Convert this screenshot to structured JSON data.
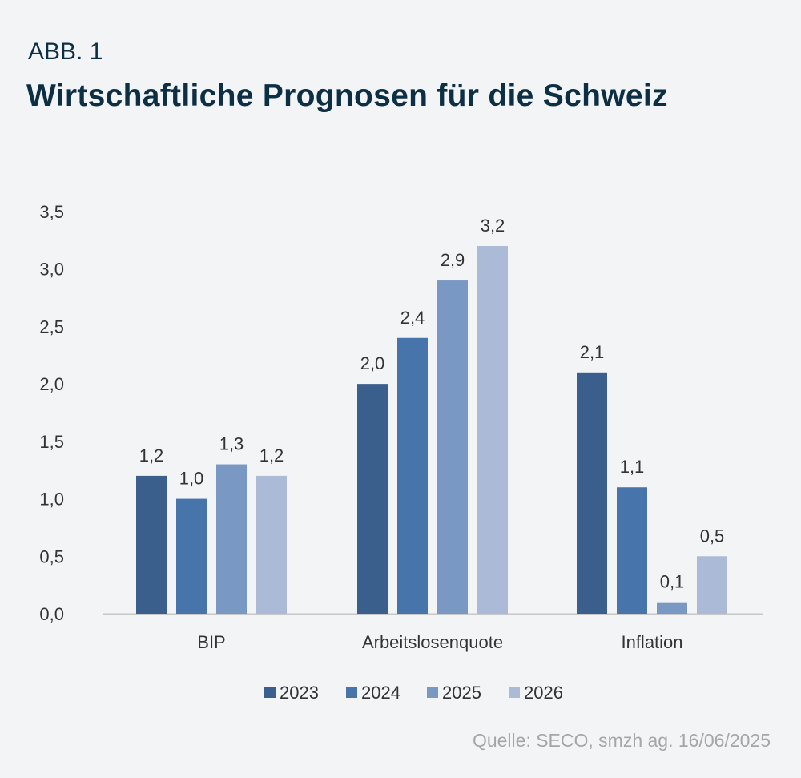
{
  "figure_label": "ABB. 1",
  "title": "Wirtschaftliche Prognosen für die Schweiz",
  "source": "Quelle: SECO, smzh ag. 16/06/2025",
  "chart_data": {
    "type": "bar",
    "title": "Wirtschaftliche Prognosen für die Schweiz",
    "xlabel": "",
    "ylabel": "",
    "categories": [
      "BIP",
      "Arbeitslosenquote",
      "Inflation"
    ],
    "series": [
      {
        "name": "2023",
        "color": "#3a5f8c",
        "values": [
          1.2,
          2.0,
          2.1
        ]
      },
      {
        "name": "2024",
        "color": "#4674ab",
        "values": [
          1.0,
          2.4,
          1.1
        ]
      },
      {
        "name": "2025",
        "color": "#7a98c4",
        "values": [
          1.3,
          2.9,
          0.1
        ]
      },
      {
        "name": "2026",
        "color": "#abbad6",
        "values": [
          1.2,
          3.2,
          0.5
        ]
      }
    ],
    "ylim": [
      0,
      3.5
    ],
    "yticks": [
      "0,0",
      "0,5",
      "1,0",
      "1,5",
      "2,0",
      "2,5",
      "3,0",
      "3,5"
    ],
    "data_labels": [
      [
        "1,2",
        "2,0",
        "2,1"
      ],
      [
        "1,0",
        "2,4",
        "1,1"
      ],
      [
        "1,3",
        "2,9",
        "0,1"
      ],
      [
        "1,2",
        "3,2",
        "0,5"
      ]
    ],
    "grid": false,
    "legend": "bottom"
  }
}
